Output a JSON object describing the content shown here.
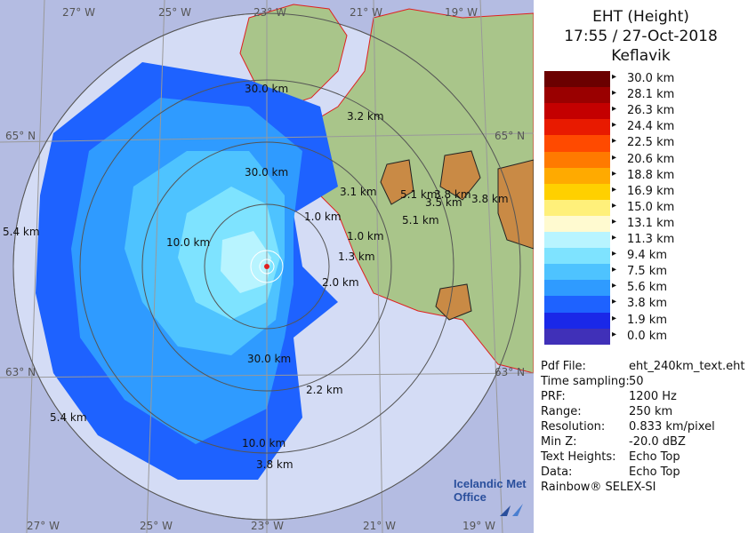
{
  "title": {
    "line1": "EHT (Height)",
    "line2": "17:55 / 27-Oct-2018",
    "line3": "Keflavik"
  },
  "legend": [
    {
      "label": "30.0 km",
      "color": "#6b0000"
    },
    {
      "label": "28.1 km",
      "color": "#9a0000"
    },
    {
      "label": "26.3 km",
      "color": "#c40000"
    },
    {
      "label": "24.4 km",
      "color": "#e81a00"
    },
    {
      "label": "22.5 km",
      "color": "#ff4a00"
    },
    {
      "label": "20.6 km",
      "color": "#ff7a00"
    },
    {
      "label": "18.8 km",
      "color": "#ffaa00"
    },
    {
      "label": "16.9 km",
      "color": "#ffd000"
    },
    {
      "label": "15.0 km",
      "color": "#fff07a"
    },
    {
      "label": "13.1 km",
      "color": "#fffad0"
    },
    {
      "label": "11.3 km",
      "color": "#b8f4ff"
    },
    {
      "label": "9.4 km",
      "color": "#7ee3ff"
    },
    {
      "label": "7.5 km",
      "color": "#4ec3ff"
    },
    {
      "label": "5.6 km",
      "color": "#2f9bff"
    },
    {
      "label": "3.8 km",
      "color": "#1e62ff"
    },
    {
      "label": "1.9 km",
      "color": "#1a28e8"
    },
    {
      "label": "0.0 km",
      "color": "#4030b8"
    }
  ],
  "info": [
    {
      "key": "Pdf File:",
      "value": "eht_240km_text.eht"
    },
    {
      "key": "Time sampling:",
      "value": "50"
    },
    {
      "key": "PRF:",
      "value": "1200 Hz"
    },
    {
      "key": "Range:",
      "value": "250 km"
    },
    {
      "key": "Resolution:",
      "value": "0.833 km/pixel"
    },
    {
      "key": "Min Z:",
      "value": "-20.0 dBZ"
    },
    {
      "key": "Text Heights:",
      "value": "Echo Top"
    },
    {
      "key": "Data:",
      "value": "Echo Top"
    }
  ],
  "footer": "Rainbow® SELEX-SI",
  "logo": {
    "line1": "Icelandic Met",
    "line2": "Office"
  },
  "grid_labels": {
    "lon_top": [
      "27° W",
      "25° W",
      "23° W",
      "21° W",
      "19° W"
    ],
    "lon_bottom": [
      "27° W",
      "25° W",
      "23° W",
      "21° W",
      "19° W"
    ],
    "lat_left": [
      "65° N",
      "63° N"
    ],
    "lat_right": [
      "65° N",
      "63° N"
    ]
  },
  "map_labels": [
    "30.0 km",
    "3.2 km",
    "30.0 km",
    "3.1 km",
    "5.1 km",
    "3.8 km",
    "3.5 km",
    "3.8 km",
    "1.0 km",
    "5.1 km",
    "5.4 km",
    "10.0 km",
    "1.0 km",
    "1.3 km",
    "2.0 km",
    "30.0 km",
    "2.2 km",
    "5.4 km",
    "10.0 km",
    "3.8 km"
  ],
  "colors": {
    "sea": "#b4bce2",
    "range_disk": "#d4dcf5",
    "land": "#a9c58a",
    "glacier": "#c98a45",
    "coastline": "#e02020"
  }
}
